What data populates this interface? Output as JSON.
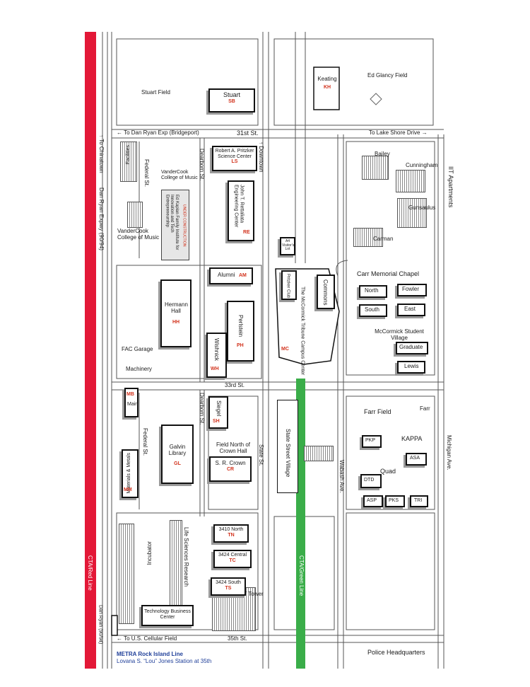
{
  "colors": {
    "red_line": "#e31837",
    "green_line": "#3aad49",
    "building_code": "#d2321c",
    "metra": "#1f3f99"
  },
  "streets": {
    "st31": "31st St.",
    "st33": "33rd St.",
    "st35": "35th St.",
    "dearborn_north": "Dearborn St.",
    "dearborn_south": "Dearborn St.",
    "federal_north": "Federal St.",
    "federal_south": "Federal St.",
    "state": "State St.",
    "wabash": "Wabash Ave.",
    "michigan": "Michigan Ave.",
    "dan_ryan": "Dan Ryan Expwy (90/94)",
    "dan_ryan_short": "Dan Ryan (90/94)"
  },
  "directions": {
    "to_dan_ryan_exp": "To Dan Ryan Exp (Bridgeport)",
    "to_lake_shore": "To Lake Shore Drive",
    "to_downtown": "Downtown",
    "to_chinatown": "To Chinatown",
    "to_us_cellular": "To U.S. Cellular Field"
  },
  "transit": {
    "red_line": "CTA/Red Line",
    "green_line": "CTA/Green Line",
    "metra_title": "METRA Rock Island Line",
    "metra_station": "Lovana S. “Lou” Jones Station at 35th"
  },
  "places": {
    "stuart_field": "Stuart Field",
    "ed_glancy_field": "Ed Glancy Field",
    "iit_apartments": "IIT Apartments",
    "fac_garage": "FAC Garage",
    "field_north_crown": "Field North of Crown Hall",
    "police_hq": "Police Headquarters",
    "iit_tower": "IIT Tower",
    "carr_chapel": "Carr Memorial Chapel",
    "mccormick_village": "McCormick Student Village",
    "farr_field": "Farr Field",
    "visitors_lot": "A4 Visitor's Lot",
    "state_street_village": "State Street Village",
    "vandercook_west": "VanderCook College of Music",
    "vandercook_east": "VanderCook College of Music",
    "facilities": "Facilities",
    "incubator": "Incubator",
    "life_sciences": "Life Sciences Research",
    "machinery": "Machinery",
    "mtcc": "The McCormick Tribune Campus Center"
  },
  "buildings": {
    "stuart": {
      "name": "Stuart",
      "code": "SB"
    },
    "keating": {
      "name": "Keating",
      "code": "KH"
    },
    "pritzker_lab": {
      "name": "Robert A. Pritzker Science Center",
      "code": "LS"
    },
    "rettaliata": {
      "name": "John T. Rettaliata Engineering Center",
      "code": "RE"
    },
    "kaplan": {
      "name": "Ed Kaplan Family Institute for Innovation and Tech Entrepreneurship",
      "note": "UNDER CONSTRUCTION"
    },
    "alumni": {
      "name": "Alumni",
      "code": "AM"
    },
    "hermann": {
      "name": "Hermann Hall",
      "code": "HH"
    },
    "perlstein": {
      "name": "Perlstein",
      "code": "PH"
    },
    "wishnick": {
      "name": "Wishnick",
      "code": "WH"
    },
    "mtcc_code": "MC",
    "main": {
      "name": "Main",
      "code": "MB"
    },
    "siegel": {
      "name": "Siegel",
      "code": "SH"
    },
    "galvin": {
      "name": "Galvin Library",
      "code": "GL"
    },
    "crown": {
      "name": "S. R. Crown",
      "code": "CR"
    },
    "materials": {
      "name": "Materials & Metals",
      "code": "MM"
    },
    "north_3410": {
      "name": "3410 North",
      "code": "TN"
    },
    "central_3424": {
      "name": "3424 Central",
      "code": "TC"
    },
    "south_3424": {
      "name": "3424 South",
      "code": "TS"
    },
    "tbc": {
      "name": "Technology Business Center"
    },
    "pritzker_club": "Pritzker Club",
    "commons": "Commons",
    "bailey": "Bailey",
    "cunningham": "Cunningham",
    "gunsaulus": "Gunsaulus",
    "carman": "Carman",
    "north": "North",
    "fowler": "Fowler",
    "south": "South",
    "east": "East",
    "graduate": "Graduate",
    "lewis": "Lewis",
    "farr": "Farr",
    "pkp": "PKP",
    "kappa": "KAPPA",
    "asa": "ASA",
    "dtd": "DTD",
    "quad": "Quad",
    "asp": "ASP",
    "pks": "PKS",
    "tri": "TRI"
  }
}
